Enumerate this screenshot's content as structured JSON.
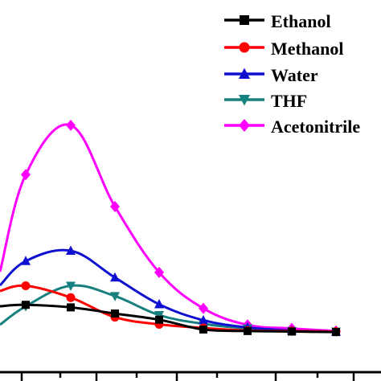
{
  "chart_data": {
    "type": "line",
    "title": "",
    "xlabel": "",
    "ylabel": "",
    "grid": false,
    "legend_position": "top-right",
    "x": [
      1,
      2,
      3,
      4,
      5,
      6,
      7,
      8
    ],
    "series": [
      {
        "name": "Ethanol",
        "color": "#000000",
        "marker": "square",
        "values": [
          0.7,
          0.65,
          0.53,
          0.41,
          0.22,
          0.19,
          0.18,
          0.17
        ]
      },
      {
        "name": "Methanol",
        "color": "#ff0000",
        "marker": "circle",
        "values": [
          1.07,
          0.84,
          0.46,
          0.32,
          0.25,
          0.2,
          0.19,
          0.18
        ]
      },
      {
        "name": "Water",
        "color": "#1010d0",
        "marker": "triangle-up",
        "values": [
          1.55,
          1.75,
          1.23,
          0.71,
          0.4,
          0.26,
          0.2,
          0.18
        ]
      },
      {
        "name": "THF",
        "color": "#17807e",
        "marker": "triangle-down",
        "values": [
          0.67,
          1.07,
          0.87,
          0.5,
          0.33,
          0.24,
          0.19,
          0.18
        ]
      },
      {
        "name": "Acetonitrile",
        "color": "#ff00ff",
        "marker": "diamond",
        "values": [
          3.23,
          4.19,
          2.61,
          1.33,
          0.63,
          0.31,
          0.24,
          0.19
        ]
      }
    ]
  },
  "legend": {
    "entries": [
      "Ethanol",
      "Methanol",
      "Water",
      "THF",
      "Acetonitrile"
    ]
  }
}
